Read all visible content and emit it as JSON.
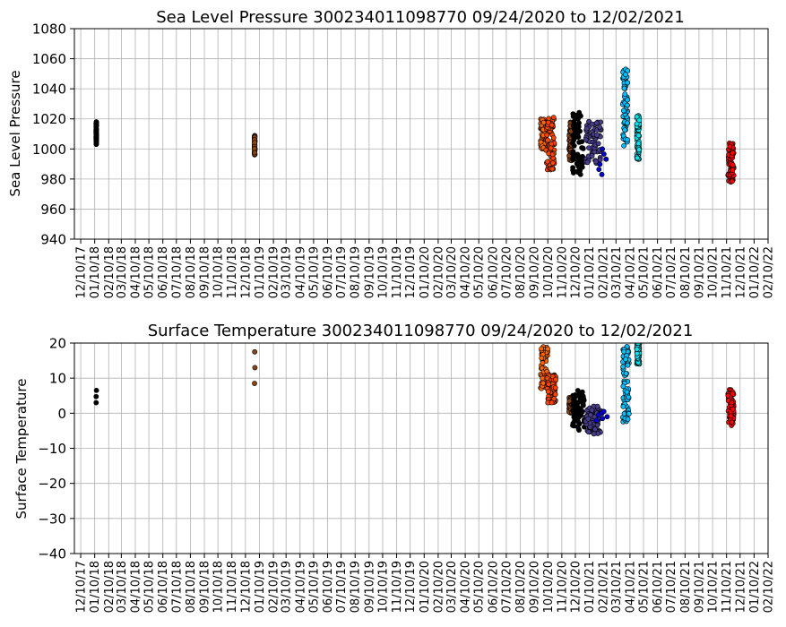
{
  "chart_data": [
    {
      "type": "scatter",
      "title": "Sea Level Pressure 300234011098770  09/24/2020 to 12/02/2021",
      "ylabel": "Sea Level Pressure",
      "xlabel": "",
      "ylim": [
        940,
        1080
      ],
      "yticks": [
        940,
        960,
        980,
        1000,
        1020,
        1040,
        1060,
        1080
      ],
      "xlim": [
        "2017-11-26",
        "2022-02-10"
      ],
      "grid": true,
      "xtick_labels": [
        "12/10/17",
        "01/10/18",
        "02/10/18",
        "03/10/18",
        "04/10/18",
        "05/10/18",
        "06/10/18",
        "07/10/18",
        "08/10/18",
        "09/10/18",
        "10/10/18",
        "11/10/18",
        "12/10/18",
        "01/10/19",
        "02/10/19",
        "03/10/19",
        "04/10/19",
        "05/10/19",
        "06/10/19",
        "07/10/19",
        "08/10/19",
        "09/10/19",
        "10/10/19",
        "11/10/19",
        "12/10/19",
        "01/10/20",
        "02/10/20",
        "03/10/20",
        "04/10/20",
        "05/10/20",
        "06/10/20",
        "07/10/20",
        "08/10/20",
        "09/10/20",
        "10/10/20",
        "11/10/20",
        "12/10/20",
        "01/10/21",
        "02/10/21",
        "03/10/21",
        "04/10/21",
        "05/10/21",
        "06/10/21",
        "07/10/21",
        "08/10/21",
        "09/10/21",
        "10/10/21",
        "11/10/21",
        "12/10/21",
        "01/10/22",
        "02/10/22"
      ],
      "clusters": [
        {
          "color": "#000000",
          "x": [
            "2018-01-13",
            "2018-01-14"
          ],
          "y": [
            1003,
            1018
          ],
          "size": "medium"
        },
        {
          "color": "#8B4513",
          "x": [
            "2018-12-30",
            "2018-12-31"
          ],
          "y": [
            996,
            1009
          ],
          "size": "medium"
        },
        {
          "color": "#FF6600",
          "x": [
            "2020-09-24",
            "2020-10-06"
          ],
          "y": [
            1000,
            1020
          ],
          "size": "medium"
        },
        {
          "color": "#FF4400",
          "x": [
            "2020-10-06",
            "2020-10-25"
          ],
          "y": [
            986,
            1021
          ],
          "size": "medium"
        },
        {
          "color": "#8B4513",
          "x": [
            "2020-11-26",
            "2020-12-02"
          ],
          "y": [
            992,
            1018
          ],
          "size": "medium"
        },
        {
          "color": "#000000",
          "x": [
            "2020-12-04",
            "2020-12-28"
          ],
          "y": [
            983,
            1027
          ],
          "size": "medium"
        },
        {
          "color": "#483D8B",
          "x": [
            "2021-01-02",
            "2021-02-05"
          ],
          "y": [
            990,
            1019
          ],
          "size": "medium"
        },
        {
          "color": "#0000CD",
          "x": [
            "2021-01-25",
            "2021-02-20"
          ],
          "y": [
            983,
            1000
          ],
          "size": "small"
        },
        {
          "color": "#00BFFF",
          "x": [
            "2021-03-25",
            "2021-04-05"
          ],
          "y": [
            1002,
            1055
          ],
          "size": "medium"
        },
        {
          "color": "#00E5EE",
          "x": [
            "2021-04-25",
            "2021-05-01"
          ],
          "y": [
            993,
            1023
          ],
          "size": "medium"
        },
        {
          "color": "#FF0000",
          "x": [
            "2021-11-13",
            "2021-11-26"
          ],
          "y": [
            978,
            1004
          ],
          "size": "medium"
        }
      ]
    },
    {
      "type": "scatter",
      "title": "Surface Temperature 300234011098770  09/24/2020 to 12/02/2021",
      "ylabel": "Surface Temperature",
      "xlabel": "",
      "ylim": [
        -40,
        20
      ],
      "yticks": [
        -40,
        -30,
        -20,
        -10,
        0,
        10,
        20
      ],
      "xlim": [
        "2017-11-26",
        "2022-02-10"
      ],
      "grid": true,
      "xtick_labels": [
        "12/10/17",
        "01/10/18",
        "02/10/18",
        "03/10/18",
        "04/10/18",
        "05/10/18",
        "06/10/18",
        "07/10/18",
        "08/10/18",
        "09/10/18",
        "10/10/18",
        "11/10/18",
        "12/10/18",
        "01/10/19",
        "02/10/19",
        "03/10/19",
        "04/10/19",
        "05/10/19",
        "06/10/19",
        "07/10/19",
        "08/10/19",
        "09/10/19",
        "10/10/19",
        "11/10/19",
        "12/10/19",
        "01/10/20",
        "02/10/20",
        "03/10/20",
        "04/10/20",
        "05/10/20",
        "06/10/20",
        "07/10/20",
        "08/10/20",
        "09/10/20",
        "10/10/20",
        "11/10/20",
        "12/10/20",
        "01/10/21",
        "02/10/21",
        "03/10/21",
        "04/10/21",
        "05/10/21",
        "06/10/21",
        "07/10/21",
        "08/10/21",
        "09/10/21",
        "10/10/21",
        "11/10/21",
        "12/10/21",
        "01/10/22",
        "02/10/22"
      ],
      "clusters": [
        {
          "color": "#000000",
          "x": [
            "2018-01-13",
            "2018-01-14"
          ],
          "y": [
            3,
            6.5
          ],
          "size": "sparse"
        },
        {
          "color": "#8B4513",
          "x": [
            "2018-12-30",
            "2018-12-31"
          ],
          "y": [
            8.5,
            17.5
          ],
          "size": "sparse"
        },
        {
          "color": "#FF6600",
          "x": [
            "2020-09-24",
            "2020-10-10"
          ],
          "y": [
            7,
            20
          ],
          "size": "medium"
        },
        {
          "color": "#FF4400",
          "x": [
            "2020-10-08",
            "2020-10-28"
          ],
          "y": [
            3,
            11
          ],
          "size": "medium"
        },
        {
          "color": "#8B4513",
          "x": [
            "2020-11-26",
            "2020-12-04"
          ],
          "y": [
            0,
            4.5
          ],
          "size": "medium"
        },
        {
          "color": "#000000",
          "x": [
            "2020-12-04",
            "2020-12-30"
          ],
          "y": [
            -5,
            6.5
          ],
          "size": "medium"
        },
        {
          "color": "#483D8B",
          "x": [
            "2021-01-02",
            "2021-02-05"
          ],
          "y": [
            -6,
            2
          ],
          "size": "medium"
        },
        {
          "color": "#0000CD",
          "x": [
            "2021-01-25",
            "2021-02-20"
          ],
          "y": [
            -2,
            0.5
          ],
          "size": "small"
        },
        {
          "color": "#00BFFF",
          "x": [
            "2021-03-25",
            "2021-04-08"
          ],
          "y": [
            -2.5,
            19
          ],
          "size": "medium"
        },
        {
          "color": "#00E5EE",
          "x": [
            "2021-04-25",
            "2021-05-01"
          ],
          "y": [
            14,
            20
          ],
          "size": "medium"
        },
        {
          "color": "#FF0000",
          "x": [
            "2021-11-13",
            "2021-11-26"
          ],
          "y": [
            -3.5,
            7
          ],
          "size": "medium"
        }
      ]
    }
  ]
}
